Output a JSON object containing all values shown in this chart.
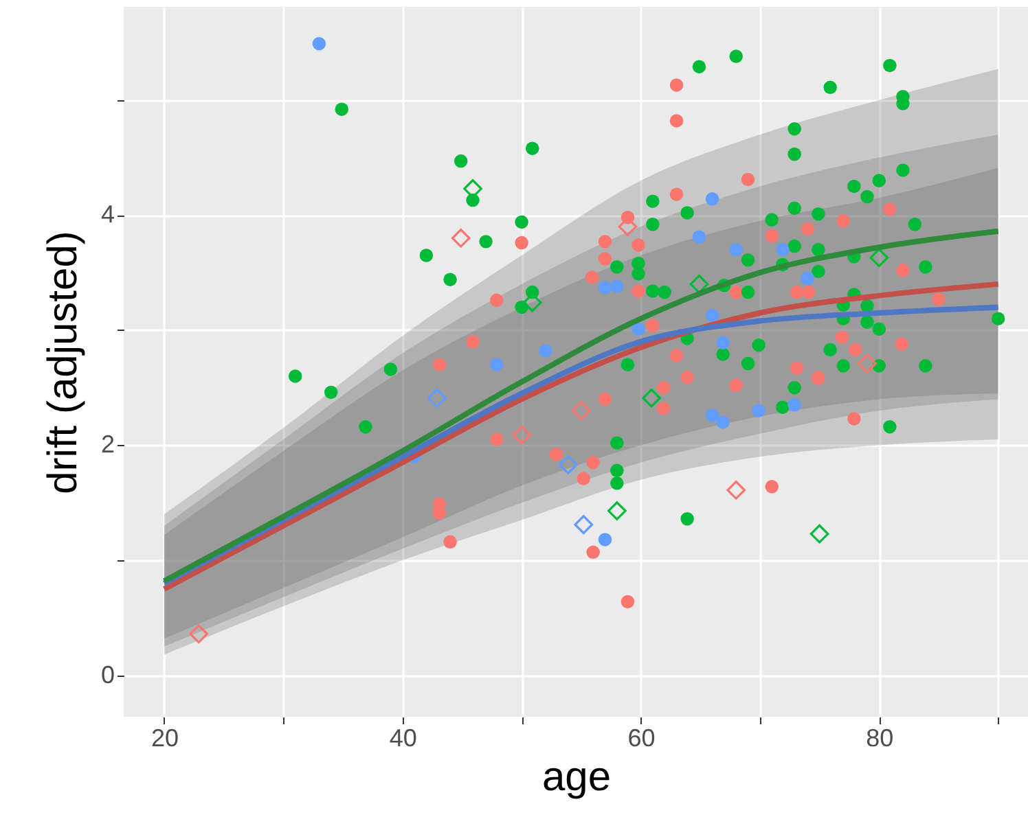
{
  "chart_data": {
    "type": "scatter",
    "xlabel": "age",
    "ylabel": "drift (adjusted)",
    "xlim": [
      16.6,
      92.5
    ],
    "ylim": [
      -0.36,
      5.81
    ],
    "xticks": [
      20,
      {
        "value": 30,
        "label": null
      },
      40,
      {
        "value": 50,
        "label": null
      },
      60,
      {
        "value": 70,
        "label": null
      },
      80,
      {
        "value": 90,
        "label": null
      }
    ],
    "yticks": [
      0,
      {
        "value": 1,
        "label": null
      },
      2,
      {
        "value": 3,
        "label": null
      },
      4,
      {
        "value": 5,
        "label": null
      }
    ],
    "grid": true,
    "series": [
      {
        "type": "scatter",
        "marker": "circle",
        "color": "#f8766d",
        "x": [
          50.0,
          47.9,
          45.9,
          43.1,
          43.1,
          43.1,
          44.0,
          47.9,
          52.9,
          56.0,
          58.9,
          71.0,
          77.9,
          56.0,
          55.2,
          57.0,
          61.9,
          61.9,
          63.9,
          68.0,
          74.9,
          63.0,
          63.0,
          69.0,
          63.0,
          58.9,
          77.0,
          74.0,
          71.0,
          57.0,
          59.8,
          57.0,
          55.9,
          59.8,
          82.0,
          85.0,
          80.9,
          73.1,
          74.1,
          68.0,
          61.0,
          76.9,
          81.9,
          78.0,
          63.0,
          73.1,
          74.9
        ],
        "values": [
          3.76,
          3.26,
          2.9,
          2.7,
          1.49,
          1.41,
          1.16,
          2.05,
          1.92,
          1.07,
          0.64,
          1.64,
          2.23,
          1.85,
          1.71,
          2.4,
          2.5,
          2.32,
          2.59,
          2.52,
          2.58,
          5.13,
          4.82,
          4.31,
          4.18,
          3.98,
          3.95,
          3.88,
          3.82,
          3.77,
          3.74,
          3.62,
          3.46,
          3.34,
          3.52,
          3.27,
          4.05,
          3.33,
          3.33,
          3.33,
          3.04,
          2.94,
          2.88,
          2.83,
          2.78,
          2.67,
          2.59
        ]
      },
      {
        "type": "scatter",
        "marker": "circle",
        "color": "#00ba38",
        "x": [
          31.0,
          34.0,
          36.9,
          34.9,
          44.9,
          45.9,
          50.9,
          50.0,
          47.0,
          42.0,
          44.0,
          50.9,
          50.0,
          39.0,
          58.0,
          58.0,
          58.0,
          63.9,
          71.9,
          72.9,
          80.9,
          64.9,
          68.0,
          80.9,
          75.9,
          82.0,
          82.0,
          72.9,
          72.9,
          82.0,
          80.0,
          77.9,
          79.0,
          61.0,
          61.0,
          63.9,
          72.9,
          74.9,
          71.0,
          83.0,
          72.9,
          74.9,
          69.0,
          58.0,
          59.8,
          59.8,
          77.9,
          83.9,
          61.0,
          62.0,
          69.0,
          67.0,
          71.9,
          74.9,
          90.0,
          77.0,
          79.0,
          77.9,
          79.0,
          80.0,
          77.0,
          69.9,
          66.9,
          69.0,
          75.9,
          83.9,
          77.0,
          80.0,
          63.9,
          58.9
        ],
        "values": [
          2.6,
          2.46,
          2.16,
          4.92,
          4.47,
          4.13,
          4.58,
          3.94,
          3.77,
          3.65,
          3.44,
          3.33,
          3.2,
          2.66,
          2.02,
          1.78,
          1.67,
          1.36,
          2.33,
          2.5,
          2.16,
          5.29,
          5.38,
          5.3,
          5.11,
          5.03,
          4.97,
          4.75,
          4.53,
          4.39,
          4.3,
          4.25,
          4.16,
          4.12,
          3.92,
          4.02,
          4.06,
          4.01,
          3.96,
          3.92,
          3.73,
          3.7,
          3.61,
          3.55,
          3.58,
          3.49,
          3.64,
          3.55,
          3.34,
          3.33,
          3.33,
          3.39,
          3.57,
          3.51,
          3.1,
          3.22,
          3.21,
          3.31,
          3.07,
          3.01,
          3.1,
          2.87,
          2.79,
          2.71,
          2.83,
          2.69,
          2.69,
          2.69,
          2.93,
          2.7
        ]
      },
      {
        "type": "scatter",
        "marker": "circle",
        "color": "#619cff",
        "x": [
          33.0,
          52.0,
          47.9,
          41.0,
          57.0,
          66.0,
          66.9,
          69.9,
          72.9,
          66.0,
          64.9,
          68.0,
          71.9,
          74.0,
          57.0,
          58.0,
          66.0,
          66.9,
          59.8
        ],
        "values": [
          5.49,
          2.82,
          2.7,
          1.9,
          1.18,
          2.26,
          2.2,
          2.3,
          2.35,
          4.14,
          3.81,
          3.7,
          3.7,
          3.45,
          3.37,
          3.38,
          3.13,
          2.89,
          3.01
        ]
      },
      {
        "type": "scatter",
        "marker": "diamond",
        "color": "#f8766d",
        "x": [
          22.9,
          50.0,
          68.0,
          44.9,
          58.9,
          79.0,
          55.0
        ],
        "values": [
          0.36,
          2.09,
          1.61,
          3.8,
          3.9,
          2.71,
          2.3
        ]
      },
      {
        "type": "scatter",
        "marker": "diamond",
        "color": "#00ba38",
        "x": [
          45.9,
          50.9,
          60.9,
          58.0,
          75.0,
          64.9,
          80.0
        ],
        "values": [
          4.23,
          3.24,
          2.41,
          1.43,
          1.23,
          3.4,
          3.63
        ]
      },
      {
        "type": "scatter",
        "marker": "diamond",
        "color": "#619cff",
        "x": [
          42.9,
          53.9,
          55.2
        ],
        "values": [
          2.41,
          1.83,
          1.31
        ]
      },
      {
        "type": "line",
        "color": "#c4504a",
        "x": [
          20,
          30,
          40,
          50,
          60,
          70,
          80,
          90
        ],
        "values": [
          0.75,
          1.3,
          1.85,
          2.4,
          2.85,
          3.15,
          3.3,
          3.4
        ],
        "lower": [
          0.25,
          0.68,
          1.1,
          1.5,
          1.85,
          2.1,
          2.3,
          2.4
        ],
        "upper": [
          1.3,
          2.05,
          2.8,
          3.4,
          3.9,
          4.25,
          4.5,
          4.7
        ]
      },
      {
        "type": "line",
        "color": "#4f78c4",
        "x": [
          20,
          30,
          40,
          50,
          60,
          70,
          80,
          90
        ],
        "values": [
          0.8,
          1.35,
          1.9,
          2.45,
          2.9,
          3.08,
          3.15,
          3.2
        ],
        "lower": [
          0.32,
          0.76,
          1.2,
          1.65,
          2.0,
          2.25,
          2.4,
          2.45
        ],
        "upper": [
          1.22,
          1.95,
          2.65,
          3.2,
          3.65,
          3.95,
          4.15,
          4.41
        ]
      },
      {
        "type": "line",
        "color": "#2e8b3c",
        "x": [
          20,
          30,
          40,
          50,
          60,
          70,
          80,
          90
        ],
        "values": [
          0.82,
          1.38,
          1.95,
          2.55,
          3.1,
          3.5,
          3.72,
          3.86
        ],
        "lower": [
          0.18,
          0.6,
          1.0,
          1.35,
          1.7,
          1.9,
          2.0,
          2.05
        ],
        "upper": [
          1.4,
          2.15,
          2.95,
          3.65,
          4.3,
          4.7,
          5.0,
          5.27
        ]
      }
    ]
  }
}
